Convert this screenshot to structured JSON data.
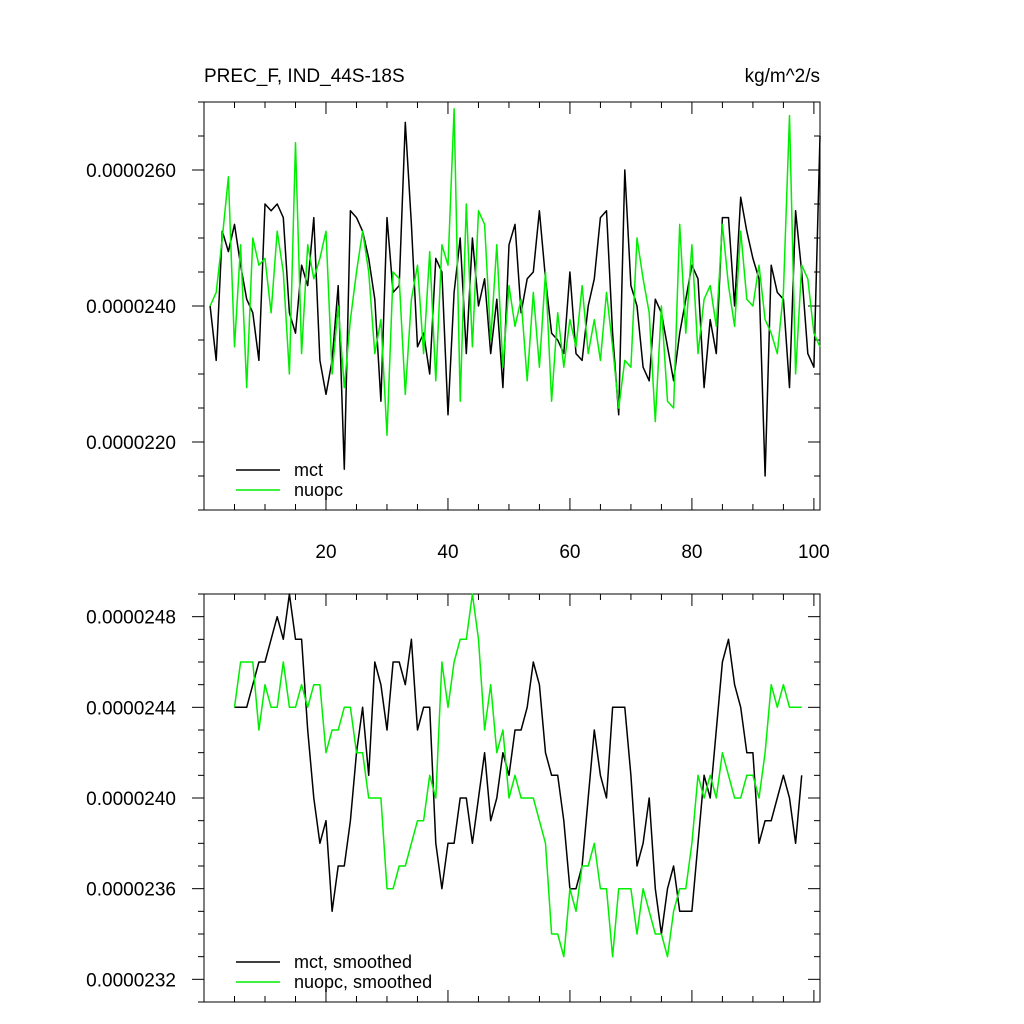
{
  "chart_data": [
    {
      "type": "line",
      "title_left": "PREC_F, IND_44S-18S",
      "title_right": "kg/m^2/s",
      "xlim": [
        0,
        101
      ],
      "ylim": [
        2.1e-05,
        2.7e-05
      ],
      "xticks": [
        20,
        40,
        60,
        80,
        100
      ],
      "xtick_labels": [
        "20",
        "40",
        "60",
        "80",
        "100"
      ],
      "yticks": [
        2.2e-05,
        2.4e-05,
        2.6e-05
      ],
      "ytick_labels": [
        "0.0000220",
        "0.0000240",
        "0.0000260"
      ],
      "legend_position": "bottom-left",
      "colors": {
        "mct": "#000000",
        "nuopc": "#00ee00"
      },
      "series": [
        {
          "name": "mct",
          "color": "#000000",
          "x": [
            1,
            2,
            3,
            4,
            5,
            6,
            7,
            8,
            9,
            10,
            11,
            12,
            13,
            14,
            15,
            16,
            17,
            18,
            19,
            20,
            21,
            22,
            23,
            24,
            25,
            26,
            27,
            28,
            29,
            30,
            31,
            32,
            33,
            34,
            35,
            36,
            37,
            38,
            39,
            40,
            41,
            42,
            43,
            44,
            45,
            46,
            47,
            48,
            49,
            50,
            51,
            52,
            53,
            54,
            55,
            56,
            57,
            58,
            59,
            60,
            61,
            62,
            63,
            64,
            65,
            66,
            67,
            68,
            69,
            70,
            71,
            72,
            73,
            74,
            75,
            76,
            77,
            78,
            79,
            80,
            81,
            82,
            83,
            84,
            85,
            86,
            87,
            88,
            89,
            90,
            91,
            92,
            93,
            94,
            95,
            96,
            97,
            98,
            99,
            100,
            101
          ],
          "values": [
            2.4e-05,
            2.32e-05,
            2.51e-05,
            2.48e-05,
            2.52e-05,
            2.46e-05,
            2.41e-05,
            2.39e-05,
            2.32e-05,
            2.55e-05,
            2.54e-05,
            2.55e-05,
            2.53e-05,
            2.39e-05,
            2.36e-05,
            2.46e-05,
            2.43e-05,
            2.53e-05,
            2.32e-05,
            2.27e-05,
            2.32e-05,
            2.43e-05,
            2.16e-05,
            2.54e-05,
            2.53e-05,
            2.51e-05,
            2.47e-05,
            2.41e-05,
            2.26e-05,
            2.53e-05,
            2.42e-05,
            2.43e-05,
            2.67e-05,
            2.52e-05,
            2.34e-05,
            2.36e-05,
            2.3e-05,
            2.47e-05,
            2.45e-05,
            2.24e-05,
            2.42e-05,
            2.5e-05,
            2.33e-05,
            2.5e-05,
            2.4e-05,
            2.44e-05,
            2.33e-05,
            2.41e-05,
            2.28e-05,
            2.49e-05,
            2.52e-05,
            2.39e-05,
            2.44e-05,
            2.45e-05,
            2.54e-05,
            2.44e-05,
            2.36e-05,
            2.35e-05,
            2.33e-05,
            2.45e-05,
            2.33e-05,
            2.32e-05,
            2.4e-05,
            2.44e-05,
            2.53e-05,
            2.54e-05,
            2.36e-05,
            2.24e-05,
            2.6e-05,
            2.43e-05,
            2.4e-05,
            2.31e-05,
            2.29e-05,
            2.41e-05,
            2.39e-05,
            2.34e-05,
            2.29e-05,
            2.36e-05,
            2.41e-05,
            2.46e-05,
            2.44e-05,
            2.28e-05,
            2.38e-05,
            2.33e-05,
            2.53e-05,
            2.53e-05,
            2.4e-05,
            2.56e-05,
            2.51e-05,
            2.47e-05,
            2.44e-05,
            2.15e-05,
            2.46e-05,
            2.42e-05,
            2.41e-05,
            2.28e-05,
            2.54e-05,
            2.45e-05,
            2.33e-05,
            2.31e-05,
            2.65e-05
          ]
        },
        {
          "name": "nuopc",
          "color": "#00ee00",
          "x": [
            1,
            2,
            3,
            4,
            5,
            6,
            7,
            8,
            9,
            10,
            11,
            12,
            13,
            14,
            15,
            16,
            17,
            18,
            19,
            20,
            21,
            22,
            23,
            24,
            25,
            26,
            27,
            28,
            29,
            30,
            31,
            32,
            33,
            34,
            35,
            36,
            37,
            38,
            39,
            40,
            41,
            42,
            43,
            44,
            45,
            46,
            47,
            48,
            49,
            50,
            51,
            52,
            53,
            54,
            55,
            56,
            57,
            58,
            59,
            60,
            61,
            62,
            63,
            64,
            65,
            66,
            67,
            68,
            69,
            70,
            71,
            72,
            73,
            74,
            75,
            76,
            77,
            78,
            79,
            80,
            81,
            82,
            83,
            84,
            85,
            86,
            87,
            88,
            89,
            90,
            91,
            92,
            93,
            94,
            95,
            96,
            97,
            98,
            99,
            100,
            101
          ],
          "values": [
            2.4e-05,
            2.42e-05,
            2.5e-05,
            2.59e-05,
            2.34e-05,
            2.49e-05,
            2.28e-05,
            2.5e-05,
            2.46e-05,
            2.47e-05,
            2.39e-05,
            2.51e-05,
            2.45e-05,
            2.3e-05,
            2.64e-05,
            2.33e-05,
            2.49e-05,
            2.44e-05,
            2.47e-05,
            2.51e-05,
            2.3e-05,
            2.4e-05,
            2.28e-05,
            2.38e-05,
            2.45e-05,
            2.51e-05,
            2.45e-05,
            2.33e-05,
            2.38e-05,
            2.21e-05,
            2.45e-05,
            2.44e-05,
            2.27e-05,
            2.41e-05,
            2.46e-05,
            2.33e-05,
            2.48e-05,
            2.29e-05,
            2.49e-05,
            2.46e-05,
            2.69e-05,
            2.26e-05,
            2.55e-05,
            2.34e-05,
            2.54e-05,
            2.52e-05,
            2.35e-05,
            2.49e-05,
            2.31e-05,
            2.43e-05,
            2.37e-05,
            2.41e-05,
            2.29e-05,
            2.42e-05,
            2.31e-05,
            2.45e-05,
            2.26e-05,
            2.39e-05,
            2.31e-05,
            2.38e-05,
            2.34e-05,
            2.43e-05,
            2.33e-05,
            2.38e-05,
            2.32e-05,
            2.42e-05,
            2.34e-05,
            2.25e-05,
            2.32e-05,
            2.31e-05,
            2.5e-05,
            2.44e-05,
            2.39e-05,
            2.23e-05,
            2.4e-05,
            2.26e-05,
            2.25e-05,
            2.52e-05,
            2.36e-05,
            2.49e-05,
            2.33e-05,
            2.41e-05,
            2.43e-05,
            2.37e-05,
            2.52e-05,
            2.43e-05,
            2.37e-05,
            2.51e-05,
            2.41e-05,
            2.4e-05,
            2.46e-05,
            2.38e-05,
            2.36e-05,
            2.33e-05,
            2.42e-05,
            2.68e-05,
            2.3e-05,
            2.46e-05,
            2.44e-05,
            2.36e-05,
            2.34e-05
          ]
        }
      ]
    },
    {
      "type": "line",
      "xlim": [
        0,
        101
      ],
      "ylim": [
        2.31e-05,
        2.49e-05
      ],
      "xticks": [
        20,
        40,
        60,
        80,
        100
      ],
      "yticks": [
        2.32e-05,
        2.36e-05,
        2.4e-05,
        2.44e-05,
        2.48e-05
      ],
      "ytick_labels": [
        "0.0000232",
        "0.0000236",
        "0.0000240",
        "0.0000244",
        "0.0000248"
      ],
      "legend_position": "bottom-left",
      "series": [
        {
          "name": "mct, smoothed",
          "color": "#000000",
          "x": [
            5,
            6,
            7,
            8,
            9,
            10,
            11,
            12,
            13,
            14,
            15,
            16,
            17,
            18,
            19,
            20,
            21,
            22,
            23,
            24,
            25,
            26,
            27,
            28,
            29,
            30,
            31,
            32,
            33,
            34,
            35,
            36,
            37,
            38,
            39,
            40,
            41,
            42,
            43,
            44,
            45,
            46,
            47,
            48,
            49,
            50,
            51,
            52,
            53,
            54,
            55,
            56,
            57,
            58,
            59,
            60,
            61,
            62,
            63,
            64,
            65,
            66,
            67,
            68,
            69,
            70,
            71,
            72,
            73,
            74,
            75,
            76,
            77,
            78,
            79,
            80,
            81,
            82,
            83,
            84,
            85,
            86,
            87,
            88,
            89,
            90,
            91,
            92,
            93,
            94,
            95,
            96,
            97,
            98
          ],
          "values": [
            2.44e-05,
            2.44e-05,
            2.44e-05,
            2.45e-05,
            2.46e-05,
            2.46e-05,
            2.47e-05,
            2.48e-05,
            2.47e-05,
            2.49e-05,
            2.47e-05,
            2.47e-05,
            2.43e-05,
            2.4e-05,
            2.38e-05,
            2.39e-05,
            2.35e-05,
            2.37e-05,
            2.37e-05,
            2.39e-05,
            2.42e-05,
            2.44e-05,
            2.41e-05,
            2.46e-05,
            2.45e-05,
            2.43e-05,
            2.46e-05,
            2.46e-05,
            2.45e-05,
            2.47e-05,
            2.43e-05,
            2.44e-05,
            2.44e-05,
            2.38e-05,
            2.36e-05,
            2.38e-05,
            2.38e-05,
            2.4e-05,
            2.4e-05,
            2.38e-05,
            2.4e-05,
            2.42e-05,
            2.39e-05,
            2.4e-05,
            2.42e-05,
            2.41e-05,
            2.43e-05,
            2.43e-05,
            2.44e-05,
            2.46e-05,
            2.45e-05,
            2.42e-05,
            2.41e-05,
            2.41e-05,
            2.39e-05,
            2.36e-05,
            2.36e-05,
            2.37e-05,
            2.4e-05,
            2.43e-05,
            2.41e-05,
            2.4e-05,
            2.44e-05,
            2.44e-05,
            2.44e-05,
            2.41e-05,
            2.37e-05,
            2.38e-05,
            2.4e-05,
            2.36e-05,
            2.34e-05,
            2.36e-05,
            2.37e-05,
            2.35e-05,
            2.35e-05,
            2.35e-05,
            2.38e-05,
            2.41e-05,
            2.4e-05,
            2.43e-05,
            2.46e-05,
            2.47e-05,
            2.45e-05,
            2.44e-05,
            2.42e-05,
            2.42e-05,
            2.38e-05,
            2.39e-05,
            2.39e-05,
            2.4e-05,
            2.41e-05,
            2.4e-05,
            2.38e-05,
            2.41e-05
          ]
        },
        {
          "name": "nuopc, smoothed",
          "color": "#00ee00",
          "x": [
            5,
            6,
            7,
            8,
            9,
            10,
            11,
            12,
            13,
            14,
            15,
            16,
            17,
            18,
            19,
            20,
            21,
            22,
            23,
            24,
            25,
            26,
            27,
            28,
            29,
            30,
            31,
            32,
            33,
            34,
            35,
            36,
            37,
            38,
            39,
            40,
            41,
            42,
            43,
            44,
            45,
            46,
            47,
            48,
            49,
            50,
            51,
            52,
            53,
            54,
            55,
            56,
            57,
            58,
            59,
            60,
            61,
            62,
            63,
            64,
            65,
            66,
            67,
            68,
            69,
            70,
            71,
            72,
            73,
            74,
            75,
            76,
            77,
            78,
            79,
            80,
            81,
            82,
            83,
            84,
            85,
            86,
            87,
            88,
            89,
            90,
            91,
            92,
            93,
            94,
            95,
            96,
            97,
            98
          ],
          "values": [
            2.44e-05,
            2.46e-05,
            2.46e-05,
            2.46e-05,
            2.43e-05,
            2.45e-05,
            2.44e-05,
            2.44e-05,
            2.46e-05,
            2.44e-05,
            2.44e-05,
            2.45e-05,
            2.44e-05,
            2.45e-05,
            2.45e-05,
            2.42e-05,
            2.43e-05,
            2.43e-05,
            2.44e-05,
            2.44e-05,
            2.42e-05,
            2.42e-05,
            2.4e-05,
            2.4e-05,
            2.4e-05,
            2.36e-05,
            2.36e-05,
            2.37e-05,
            2.37e-05,
            2.38e-05,
            2.39e-05,
            2.39e-05,
            2.41e-05,
            2.4e-05,
            2.46e-05,
            2.44e-05,
            2.46e-05,
            2.47e-05,
            2.47e-05,
            2.49e-05,
            2.47e-05,
            2.43e-05,
            2.45e-05,
            2.42e-05,
            2.43e-05,
            2.4e-05,
            2.41e-05,
            2.4e-05,
            2.4e-05,
            2.4e-05,
            2.39e-05,
            2.38e-05,
            2.34e-05,
            2.34e-05,
            2.33e-05,
            2.36e-05,
            2.35e-05,
            2.37e-05,
            2.37e-05,
            2.38e-05,
            2.36e-05,
            2.36e-05,
            2.33e-05,
            2.36e-05,
            2.36e-05,
            2.36e-05,
            2.34e-05,
            2.36e-05,
            2.35e-05,
            2.34e-05,
            2.34e-05,
            2.33e-05,
            2.35e-05,
            2.36e-05,
            2.36e-05,
            2.38e-05,
            2.41e-05,
            2.4e-05,
            2.41e-05,
            2.4e-05,
            2.42e-05,
            2.41e-05,
            2.4e-05,
            2.4e-05,
            2.41e-05,
            2.41e-05,
            2.4e-05,
            2.42e-05,
            2.45e-05,
            2.44e-05,
            2.45e-05,
            2.44e-05,
            2.44e-05,
            2.44e-05
          ]
        }
      ]
    }
  ]
}
